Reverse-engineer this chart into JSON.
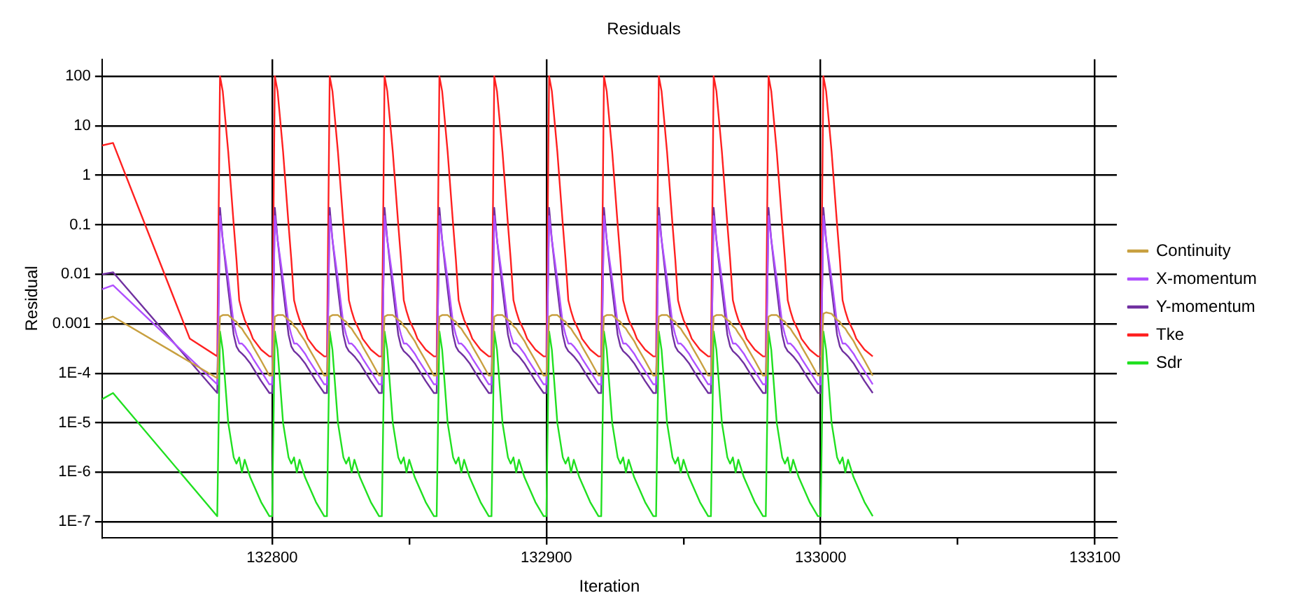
{
  "chart_data": {
    "type": "line",
    "title": "Residuals",
    "xlabel": "Iteration",
    "ylabel": "Residual",
    "log": "y",
    "grid": true,
    "legend": "right",
    "marker": "none",
    "line_style": "solid",
    "xlim": [
      132738,
      133108
    ],
    "xticks": [
      132800,
      {
        "value": 132850,
        "label": null
      },
      132900,
      {
        "value": 132950,
        "label": null
      },
      133000,
      {
        "value": 133050,
        "label": null
      },
      133100
    ],
    "ylim": [
      4.8e-08,
      220
    ],
    "yticks": [
      {
        "value": 1e-07,
        "label": "1E-7"
      },
      {
        "value": 1e-06,
        "label": "1E-6"
      },
      {
        "value": 1e-05,
        "label": "1E-5"
      },
      {
        "value": 0.0001,
        "label": "1E-4"
      },
      0.001,
      0.01,
      0.1,
      1,
      10,
      100
    ],
    "x": [
      132738,
      132742,
      132770,
      132780,
      132781,
      132782,
      132784,
      132786,
      132787,
      132788,
      132789,
      132790,
      132792,
      132793,
      132796,
      132799,
      132800,
      132801,
      132802,
      132804,
      132806,
      132807,
      132808,
      132809,
      132810,
      132812,
      132813,
      132816,
      132819,
      132820,
      132821,
      132822,
      132824,
      132826,
      132827,
      132828,
      132829,
      132830,
      132832,
      132833,
      132836,
      132839,
      132840,
      132841,
      132842,
      132844,
      132846,
      132847,
      132848,
      132849,
      132850,
      132852,
      132853,
      132856,
      132859,
      132860,
      132861,
      132862,
      132864,
      132866,
      132867,
      132868,
      132869,
      132870,
      132872,
      132873,
      132876,
      132879,
      132880,
      132881,
      132882,
      132884,
      132886,
      132887,
      132888,
      132889,
      132890,
      132892,
      132893,
      132896,
      132899,
      132900,
      132901,
      132902,
      132904,
      132906,
      132907,
      132908,
      132909,
      132910,
      132912,
      132913,
      132916,
      132919,
      132920,
      132921,
      132922,
      132924,
      132926,
      132927,
      132928,
      132929,
      132930,
      132932,
      132933,
      132936,
      132939,
      132940,
      132941,
      132942,
      132944,
      132946,
      132947,
      132948,
      132949,
      132950,
      132952,
      132953,
      132956,
      132959,
      132960,
      132961,
      132962,
      132964,
      132966,
      132967,
      132968,
      132969,
      132970,
      132972,
      132973,
      132976,
      132979,
      132980,
      132981,
      132982,
      132984,
      132986,
      132987,
      132988,
      132989,
      132990,
      132992,
      132993,
      132996,
      132999,
      133000,
      133001,
      133002,
      133004,
      133006,
      133007,
      133008,
      133009,
      133010,
      133012,
      133013,
      133016,
      133019
    ],
    "series": [
      {
        "name": "Continuity",
        "color": "#c8a040",
        "values": [
          0.0012,
          0.0014,
          null,
          8e-05,
          0.0014,
          0.0015,
          0.0015,
          0.0012,
          0.0011,
          0.0009,
          0.0008,
          0.00065,
          0.00045,
          0.00035,
          0.00018,
          9e-05,
          9e-05,
          0.0014,
          0.0015,
          0.0015,
          0.0012,
          0.0011,
          0.0009,
          0.0008,
          0.00065,
          0.00045,
          0.00035,
          0.00018,
          9e-05,
          9e-05,
          0.0014,
          0.0015,
          0.0015,
          0.0012,
          0.0011,
          0.0009,
          0.0008,
          0.00065,
          0.00045,
          0.00035,
          0.00018,
          9e-05,
          9e-05,
          0.0014,
          0.0015,
          0.0015,
          0.0012,
          0.0011,
          0.0009,
          0.0008,
          0.00065,
          0.00045,
          0.00035,
          0.00018,
          9e-05,
          9e-05,
          0.0014,
          0.0015,
          0.0015,
          0.0012,
          0.0011,
          0.0009,
          0.0008,
          0.00065,
          0.00045,
          0.00035,
          0.00018,
          9e-05,
          9e-05,
          0.0014,
          0.0015,
          0.0015,
          0.0012,
          0.0011,
          0.0009,
          0.0008,
          0.00065,
          0.00045,
          0.00035,
          0.00018,
          9e-05,
          9e-05,
          0.0014,
          0.0015,
          0.0015,
          0.0012,
          0.0011,
          0.0009,
          0.0008,
          0.00065,
          0.00045,
          0.00035,
          0.00018,
          9e-05,
          9e-05,
          0.0014,
          0.0015,
          0.0015,
          0.0012,
          0.0011,
          0.0009,
          0.0008,
          0.00065,
          0.00045,
          0.00035,
          0.00018,
          9e-05,
          9e-05,
          0.0014,
          0.0015,
          0.0015,
          0.0012,
          0.0011,
          0.0009,
          0.0008,
          0.00065,
          0.00045,
          0.00035,
          0.00018,
          9e-05,
          9e-05,
          0.0014,
          0.0015,
          0.0015,
          0.0012,
          0.0011,
          0.0009,
          0.0008,
          0.00065,
          0.00045,
          0.00035,
          0.00018,
          9e-05,
          9e-05,
          0.0014,
          0.0015,
          0.0015,
          0.0012,
          0.0011,
          0.0009,
          0.0008,
          0.00065,
          0.00045,
          0.00035,
          0.00018,
          9e-05,
          9e-05,
          0.0016,
          0.0017,
          0.0016,
          0.0012,
          0.0011,
          0.0009,
          0.0008,
          0.00065,
          0.00045,
          0.00035,
          0.00018,
          9e-05
        ]
      },
      {
        "name": "X-momentum",
        "color": "#b050ff",
        "values": [
          0.005,
          0.006,
          null,
          6e-05,
          0.15,
          0.05,
          0.008,
          0.001,
          0.0006,
          0.0004,
          0.0004,
          0.00035,
          0.00025,
          0.0002,
          0.00011,
          6e-05,
          6e-05,
          0.15,
          0.05,
          0.008,
          0.001,
          0.0006,
          0.0004,
          0.0004,
          0.00035,
          0.00025,
          0.0002,
          0.00011,
          6e-05,
          6e-05,
          0.15,
          0.05,
          0.008,
          0.001,
          0.0006,
          0.0004,
          0.0004,
          0.00035,
          0.00025,
          0.0002,
          0.00011,
          6e-05,
          6e-05,
          0.15,
          0.05,
          0.008,
          0.001,
          0.0006,
          0.0004,
          0.0004,
          0.00035,
          0.00025,
          0.0002,
          0.00011,
          6e-05,
          6e-05,
          0.15,
          0.05,
          0.008,
          0.001,
          0.0006,
          0.0004,
          0.0004,
          0.00035,
          0.00025,
          0.0002,
          0.00011,
          6e-05,
          6e-05,
          0.15,
          0.05,
          0.008,
          0.001,
          0.0006,
          0.0004,
          0.0004,
          0.00035,
          0.00025,
          0.0002,
          0.00011,
          6e-05,
          6e-05,
          0.15,
          0.05,
          0.008,
          0.001,
          0.0006,
          0.0004,
          0.0004,
          0.00035,
          0.00025,
          0.0002,
          0.00011,
          6e-05,
          6e-05,
          0.15,
          0.05,
          0.008,
          0.001,
          0.0006,
          0.0004,
          0.0004,
          0.00035,
          0.00025,
          0.0002,
          0.00011,
          6e-05,
          6e-05,
          0.15,
          0.05,
          0.008,
          0.001,
          0.0006,
          0.0004,
          0.0004,
          0.00035,
          0.00025,
          0.0002,
          0.00011,
          6e-05,
          6e-05,
          0.15,
          0.05,
          0.008,
          0.001,
          0.0006,
          0.0004,
          0.0004,
          0.00035,
          0.00025,
          0.0002,
          0.00011,
          6e-05,
          6e-05,
          0.15,
          0.05,
          0.008,
          0.001,
          0.0006,
          0.0004,
          0.0004,
          0.00035,
          0.00025,
          0.0002,
          0.00011,
          6e-05,
          6e-05,
          0.15,
          0.05,
          0.008,
          0.001,
          0.0006,
          0.0004,
          0.0004,
          0.00035,
          0.00025,
          0.0002,
          0.00011,
          6e-05
        ]
      },
      {
        "name": "Y-momentum",
        "color": "#7030a0",
        "values": [
          0.01,
          0.011,
          null,
          4e-05,
          0.22,
          0.05,
          0.005,
          0.0006,
          0.00035,
          0.00028,
          0.00025,
          0.00022,
          0.00016,
          0.00013,
          7e-05,
          4e-05,
          4e-05,
          0.22,
          0.05,
          0.005,
          0.0006,
          0.00035,
          0.00028,
          0.00025,
          0.00022,
          0.00016,
          0.00013,
          7e-05,
          4e-05,
          4e-05,
          0.22,
          0.05,
          0.005,
          0.0006,
          0.00035,
          0.00028,
          0.00025,
          0.00022,
          0.00016,
          0.00013,
          7e-05,
          4e-05,
          4e-05,
          0.22,
          0.05,
          0.005,
          0.0006,
          0.00035,
          0.00028,
          0.00025,
          0.00022,
          0.00016,
          0.00013,
          7e-05,
          4e-05,
          4e-05,
          0.22,
          0.05,
          0.005,
          0.0006,
          0.00035,
          0.00028,
          0.00025,
          0.00022,
          0.00016,
          0.00013,
          7e-05,
          4e-05,
          4e-05,
          0.22,
          0.05,
          0.005,
          0.0006,
          0.00035,
          0.00028,
          0.00025,
          0.00022,
          0.00016,
          0.00013,
          7e-05,
          4e-05,
          4e-05,
          0.22,
          0.05,
          0.005,
          0.0006,
          0.00035,
          0.00028,
          0.00025,
          0.00022,
          0.00016,
          0.00013,
          7e-05,
          4e-05,
          4e-05,
          0.22,
          0.05,
          0.005,
          0.0006,
          0.00035,
          0.00028,
          0.00025,
          0.00022,
          0.00016,
          0.00013,
          7e-05,
          4e-05,
          4e-05,
          0.22,
          0.05,
          0.005,
          0.0006,
          0.00035,
          0.00028,
          0.00025,
          0.00022,
          0.00016,
          0.00013,
          7e-05,
          4e-05,
          4e-05,
          0.22,
          0.05,
          0.005,
          0.0006,
          0.00035,
          0.00028,
          0.00025,
          0.00022,
          0.00016,
          0.00013,
          7e-05,
          4e-05,
          4e-05,
          0.22,
          0.05,
          0.005,
          0.0006,
          0.00035,
          0.00028,
          0.00025,
          0.00022,
          0.00016,
          0.00013,
          7e-05,
          4e-05,
          4e-05,
          0.22,
          0.05,
          0.005,
          0.0006,
          0.00035,
          0.00028,
          0.00025,
          0.00022,
          0.00016,
          0.00013,
          7e-05,
          4e-05
        ]
      },
      {
        "name": "Tke",
        "color": "#ff2020",
        "values": [
          4,
          4.5,
          0.0005,
          0.00022,
          100,
          50,
          3,
          0.1,
          0.02,
          0.003,
          0.0018,
          0.0012,
          0.0007,
          0.0005,
          0.0003,
          0.00022,
          0.00022,
          100,
          50,
          3,
          0.1,
          0.02,
          0.003,
          0.0018,
          0.0012,
          0.0007,
          0.0005,
          0.0003,
          0.00022,
          0.00022,
          100,
          50,
          3,
          0.1,
          0.02,
          0.003,
          0.0018,
          0.0012,
          0.0007,
          0.0005,
          0.0003,
          0.00022,
          0.00022,
          100,
          50,
          3,
          0.1,
          0.02,
          0.003,
          0.0018,
          0.0012,
          0.0007,
          0.0005,
          0.0003,
          0.00022,
          0.00022,
          100,
          50,
          3,
          0.1,
          0.02,
          0.003,
          0.0018,
          0.0012,
          0.0007,
          0.0005,
          0.0003,
          0.00022,
          0.00022,
          100,
          50,
          3,
          0.1,
          0.02,
          0.003,
          0.0018,
          0.0012,
          0.0007,
          0.0005,
          0.0003,
          0.00022,
          0.00022,
          100,
          50,
          3,
          0.1,
          0.02,
          0.003,
          0.0018,
          0.0012,
          0.0007,
          0.0005,
          0.0003,
          0.00022,
          0.00022,
          100,
          50,
          3,
          0.1,
          0.02,
          0.003,
          0.0018,
          0.0012,
          0.0007,
          0.0005,
          0.0003,
          0.00022,
          0.00022,
          100,
          50,
          3,
          0.1,
          0.02,
          0.003,
          0.0018,
          0.0012,
          0.0007,
          0.0005,
          0.0003,
          0.00022,
          0.00022,
          100,
          50,
          3,
          0.1,
          0.02,
          0.003,
          0.0018,
          0.0012,
          0.0007,
          0.0005,
          0.0003,
          0.00022,
          0.00022,
          100,
          50,
          3,
          0.1,
          0.02,
          0.003,
          0.0018,
          0.0012,
          0.0007,
          0.0005,
          0.0003,
          0.00022,
          0.00022,
          100,
          50,
          3,
          0.1,
          0.02,
          0.003,
          0.0018,
          0.0012,
          0.0007,
          0.0005,
          0.0003,
          0.00022
        ]
      },
      {
        "name": "Sdr",
        "color": "#20e020",
        "values": [
          3e-05,
          4e-05,
          null,
          1.3e-07,
          0.0007,
          0.0003,
          1e-05,
          2e-06,
          1.5e-06,
          2e-06,
          1e-06,
          1.8e-06,
          8e-07,
          6e-07,
          2.5e-07,
          1.3e-07,
          1.3e-07,
          0.0007,
          0.0003,
          1e-05,
          2e-06,
          1.5e-06,
          2e-06,
          1e-06,
          1.8e-06,
          8e-07,
          6e-07,
          2.5e-07,
          1.3e-07,
          1.3e-07,
          0.0007,
          0.0003,
          1e-05,
          2e-06,
          1.5e-06,
          2e-06,
          1e-06,
          1.8e-06,
          8e-07,
          6e-07,
          2.5e-07,
          1.3e-07,
          1.3e-07,
          0.0007,
          0.0003,
          1e-05,
          2e-06,
          1.5e-06,
          2e-06,
          1e-06,
          1.8e-06,
          8e-07,
          6e-07,
          2.5e-07,
          1.3e-07,
          1.3e-07,
          0.0007,
          0.0003,
          1e-05,
          2e-06,
          1.5e-06,
          2e-06,
          1e-06,
          1.8e-06,
          8e-07,
          6e-07,
          2.5e-07,
          1.3e-07,
          1.3e-07,
          0.0007,
          0.0003,
          1e-05,
          2e-06,
          1.5e-06,
          2e-06,
          1e-06,
          1.8e-06,
          8e-07,
          6e-07,
          2.5e-07,
          1.3e-07,
          1.3e-07,
          0.0007,
          0.0003,
          1e-05,
          2e-06,
          1.5e-06,
          2e-06,
          1e-06,
          1.8e-06,
          8e-07,
          6e-07,
          2.5e-07,
          1.3e-07,
          1.3e-07,
          0.0007,
          0.0003,
          1e-05,
          2e-06,
          1.5e-06,
          2e-06,
          1e-06,
          1.8e-06,
          8e-07,
          6e-07,
          2.5e-07,
          1.3e-07,
          1.3e-07,
          0.0007,
          0.0003,
          1e-05,
          2e-06,
          1.5e-06,
          2e-06,
          1e-06,
          1.8e-06,
          8e-07,
          6e-07,
          2.5e-07,
          1.3e-07,
          1.3e-07,
          0.0007,
          0.0003,
          1e-05,
          2e-06,
          1.5e-06,
          2e-06,
          1e-06,
          1.8e-06,
          8e-07,
          6e-07,
          2.5e-07,
          1.3e-07,
          1.3e-07,
          0.0007,
          0.0003,
          1e-05,
          2e-06,
          1.5e-06,
          2e-06,
          1e-06,
          1.8e-06,
          8e-07,
          6e-07,
          2.5e-07,
          1.3e-07,
          1.3e-07,
          0.0007,
          0.0003,
          1e-05,
          2e-06,
          1.5e-06,
          2e-06,
          1e-06,
          1.8e-06,
          8e-07,
          6e-07,
          2.5e-07,
          1.3e-07
        ]
      }
    ]
  }
}
